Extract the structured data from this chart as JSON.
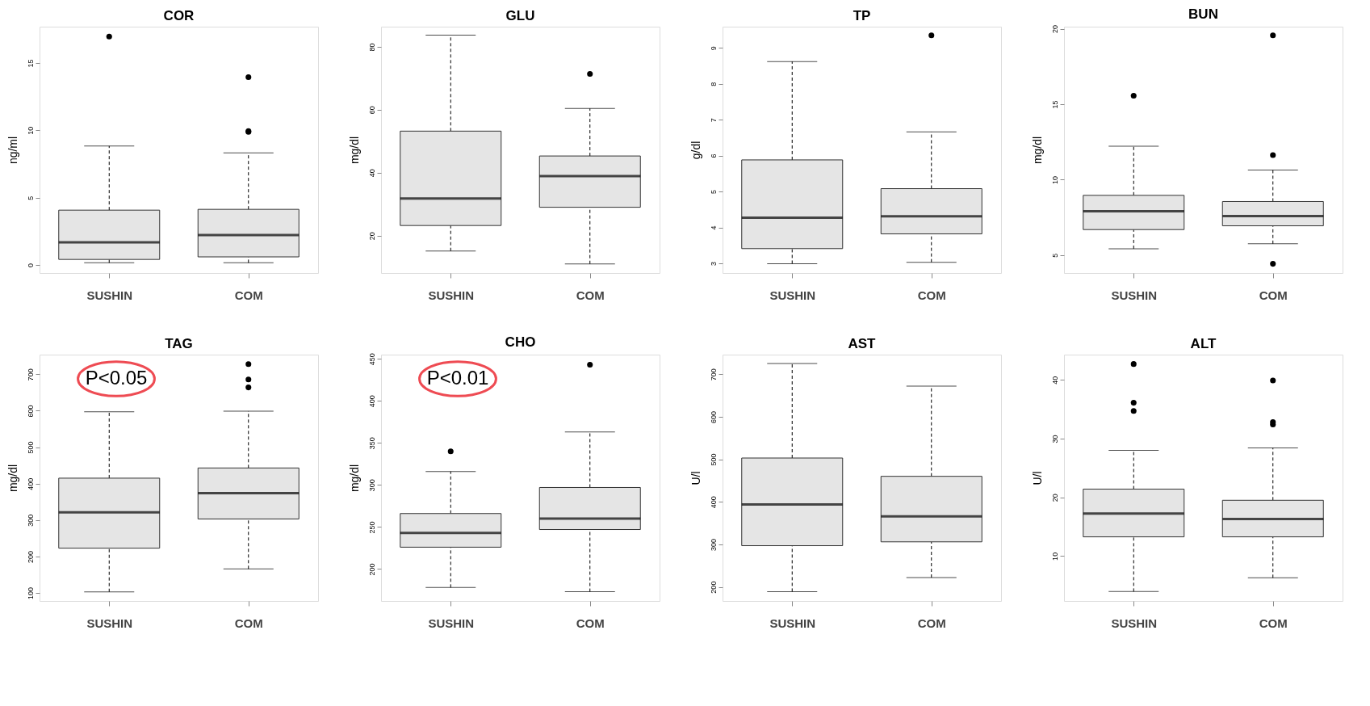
{
  "chart_data": [
    {
      "type": "box",
      "title": "COR",
      "ylabel": "ng/ml",
      "categories": [
        "SUSHIN",
        "COM"
      ],
      "colors": [
        "#e5e5e5",
        "#e5e5e5"
      ],
      "ylim": [
        -0.6,
        17.7
      ],
      "yticks": [
        0,
        5,
        10,
        15
      ],
      "grid": false,
      "boxes": [
        {
          "low": 0.16,
          "q1": 0.41,
          "median": 1.68,
          "q3": 4.07,
          "high": 8.83,
          "outliers": [
            16.97
          ]
        },
        {
          "low": 0.16,
          "q1": 0.6,
          "median": 2.22,
          "q3": 4.13,
          "high": 8.33,
          "outliers": [
            13.95,
            9.95,
            9.88
          ]
        }
      ]
    },
    {
      "type": "box",
      "title": "GLU",
      "ylabel": "mg/dl",
      "categories": [
        "SUSHIN",
        "COM"
      ],
      "colors": [
        "#e5e5e5",
        "#e5e5e5"
      ],
      "ylim": [
        8.1,
        86.4
      ],
      "yticks": [
        20,
        40,
        60,
        80
      ],
      "grid": false,
      "boxes": [
        {
          "low": 15.1,
          "q1": 23.2,
          "median": 31.8,
          "q3": 53.2,
          "high": 83.7
        },
        {
          "low": 11.0,
          "q1": 29.0,
          "median": 38.9,
          "q3": 45.3,
          "high": 60.4,
          "outliers": [
            71.4
          ]
        }
      ]
    },
    {
      "type": "box",
      "title": "TP",
      "ylabel": "g/dl",
      "categories": [
        "SUSHIN",
        "COM"
      ],
      "colors": [
        "#e5e5e5",
        "#e5e5e5"
      ],
      "ylim": [
        2.73,
        9.59
      ],
      "yticks": [
        3,
        4,
        5,
        6,
        7,
        8,
        9
      ],
      "grid": false,
      "boxes": [
        {
          "low": 2.99,
          "q1": 3.41,
          "median": 4.27,
          "q3": 5.88,
          "high": 8.62
        },
        {
          "low": 3.03,
          "q1": 3.82,
          "median": 4.31,
          "q3": 5.08,
          "high": 6.66,
          "outliers": [
            9.35
          ]
        }
      ]
    },
    {
      "type": "box",
      "title": "BUN",
      "ylabel": "mg/dl",
      "categories": [
        "SUSHIN",
        "COM"
      ],
      "colors": [
        "#e5e5e5",
        "#e5e5e5"
      ],
      "ylim": [
        3.81,
        20.14
      ],
      "yticks": [
        5,
        10,
        15,
        20
      ],
      "grid": false,
      "boxes": [
        {
          "low": 5.42,
          "q1": 6.69,
          "median": 7.91,
          "q3": 8.96,
          "high": 12.21,
          "outliers": [
            15.56
          ]
        },
        {
          "low": 5.75,
          "q1": 6.94,
          "median": 7.58,
          "q3": 8.55,
          "high": 10.63,
          "outliers": [
            11.63,
            19.56,
            4.42
          ]
        }
      ]
    },
    {
      "type": "box",
      "title": "TAG",
      "ylabel": "mg/dl",
      "categories": [
        "SUSHIN",
        "COM"
      ],
      "colors": [
        "#e5e5e5",
        "#e5e5e5"
      ],
      "ylim": [
        78,
        754
      ],
      "yticks": [
        100,
        200,
        300,
        400,
        500,
        600,
        700
      ],
      "grid": false,
      "annotations": [
        "P<0.05"
      ],
      "boxes": [
        {
          "low": 103,
          "q1": 223,
          "median": 321,
          "q3": 415,
          "high": 597
        },
        {
          "low": 166,
          "q1": 303,
          "median": 374,
          "q3": 443,
          "high": 599,
          "outliers": [
            728,
            686,
            664
          ]
        }
      ]
    },
    {
      "type": "box",
      "title": "CHO",
      "ylabel": "mg/dl",
      "categories": [
        "SUSHIN",
        "COM"
      ],
      "colors": [
        "#e5e5e5",
        "#e5e5e5"
      ],
      "ylim": [
        162,
        455
      ],
      "yticks": [
        200,
        250,
        300,
        350,
        400,
        450
      ],
      "grid": false,
      "annotations": [
        "P<0.01"
      ],
      "boxes": [
        {
          "low": 178,
          "q1": 226,
          "median": 243,
          "q3": 266,
          "high": 316,
          "outliers": [
            340
          ]
        },
        {
          "low": 173,
          "q1": 247,
          "median": 260,
          "q3": 297,
          "high": 363,
          "outliers": [
            443
          ]
        }
      ]
    },
    {
      "type": "box",
      "title": "AST",
      "ylabel": "U/l",
      "categories": [
        "SUSHIN",
        "COM"
      ],
      "colors": [
        "#e5e5e5",
        "#e5e5e5"
      ],
      "ylim": [
        167,
        746
      ],
      "yticks": [
        200,
        300,
        400,
        500,
        600,
        700
      ],
      "grid": false,
      "boxes": [
        {
          "low": 189,
          "q1": 297,
          "median": 394,
          "q3": 503,
          "high": 725
        },
        {
          "low": 222,
          "q1": 306,
          "median": 366,
          "q3": 460,
          "high": 672
        }
      ]
    },
    {
      "type": "box",
      "title": "ALT",
      "ylabel": "U/l",
      "categories": [
        "SUSHIN",
        "COM"
      ],
      "colors": [
        "#e5e5e5",
        "#e5e5e5"
      ],
      "ylim": [
        2.35,
        44.3
      ],
      "yticks": [
        10,
        20,
        30,
        40
      ],
      "grid": false,
      "boxes": [
        {
          "low": 3.95,
          "q1": 13.27,
          "median": 17.24,
          "q3": 21.4,
          "high": 28.0,
          "outliers": [
            42.7,
            36.1,
            34.7
          ]
        },
        {
          "low": 6.3,
          "q1": 13.27,
          "median": 16.3,
          "q3": 19.5,
          "high": 28.4,
          "outliers": [
            39.9,
            32.8,
            32.4
          ]
        }
      ]
    }
  ]
}
